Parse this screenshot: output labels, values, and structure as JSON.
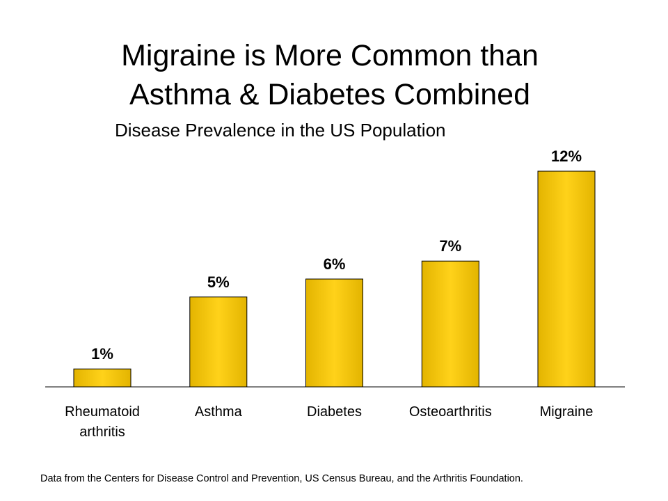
{
  "slide": {
    "title_lines": [
      "Migraine is More Common than",
      "Asthma & Diabetes Combined"
    ],
    "footnote": "Data from the Centers for Disease Control and Prevention, US Census Bureau, and the Arthritis Foundation."
  },
  "chart_data": {
    "type": "bar",
    "title": "",
    "subtitle": "Disease Prevalence in the US Population",
    "xlabel": "",
    "ylabel": "",
    "categories": [
      [
        "Rheumatoid",
        "arthritis"
      ],
      [
        "Asthma"
      ],
      [
        "Diabetes"
      ],
      [
        "Osteoarthritis"
      ],
      [
        "Migraine"
      ]
    ],
    "values": [
      1,
      5,
      6,
      7,
      12
    ],
    "data_labels": [
      "1%",
      "5%",
      "6%",
      "7%",
      "12%"
    ],
    "unit": "%",
    "ylim": [
      0,
      12
    ],
    "grid": false,
    "legend": "none",
    "bar_color": "#E3B400",
    "bar_highlight": "#FFD21A",
    "bar_outline": "#000000"
  }
}
